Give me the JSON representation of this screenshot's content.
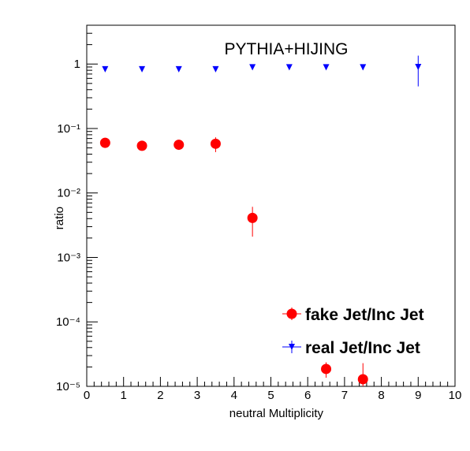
{
  "chart_data": {
    "type": "scatter",
    "title": "PYTHIA+HIJING",
    "xlabel": "neutral Multiplicity",
    "ylabel": "ratio",
    "xlim": [
      0,
      10
    ],
    "xticks": [
      0,
      1,
      2,
      3,
      4,
      5,
      6,
      7,
      8,
      9,
      10
    ],
    "ylim": [
      1e-05,
      4
    ],
    "log_y": true,
    "yticks": [
      {
        "value": 1e-05,
        "label": "10⁻⁵"
      },
      {
        "value": 0.0001,
        "label": "10⁻⁴"
      },
      {
        "value": 0.001,
        "label": "10⁻³"
      },
      {
        "value": 0.01,
        "label": "10⁻²"
      },
      {
        "value": 0.1,
        "label": "10⁻¹"
      },
      {
        "value": 1,
        "label": "1"
      }
    ],
    "legend": "lower right",
    "series": [
      {
        "name": "fake Jet/Inc Jet",
        "color": "#ff0000",
        "marker": "circle",
        "x": [
          0.5,
          1.5,
          2.5,
          3.5,
          4.5,
          5.5,
          6.5,
          7.5
        ],
        "values": [
          0.06,
          0.054,
          0.056,
          0.058,
          0.0041,
          null,
          1.86e-05,
          1.29e-05
        ],
        "errors": [
          0.006,
          0.005,
          0.006,
          0.015,
          0.002,
          null,
          5e-06,
          1e-05
        ]
      },
      {
        "name": "real Jet/Inc Jet",
        "color": "#0000ff",
        "marker": "triangle-down",
        "x": [
          0.5,
          1.5,
          2.5,
          3.5,
          4.5,
          5.5,
          6.5,
          7.5,
          9
        ],
        "values": [
          0.83,
          0.83,
          0.83,
          0.83,
          0.89,
          0.89,
          0.89,
          0.89,
          0.9
        ],
        "errors": [
          0.05,
          0.05,
          0.05,
          0.05,
          0.05,
          0.05,
          0.05,
          0.08,
          0.45
        ]
      }
    ]
  }
}
